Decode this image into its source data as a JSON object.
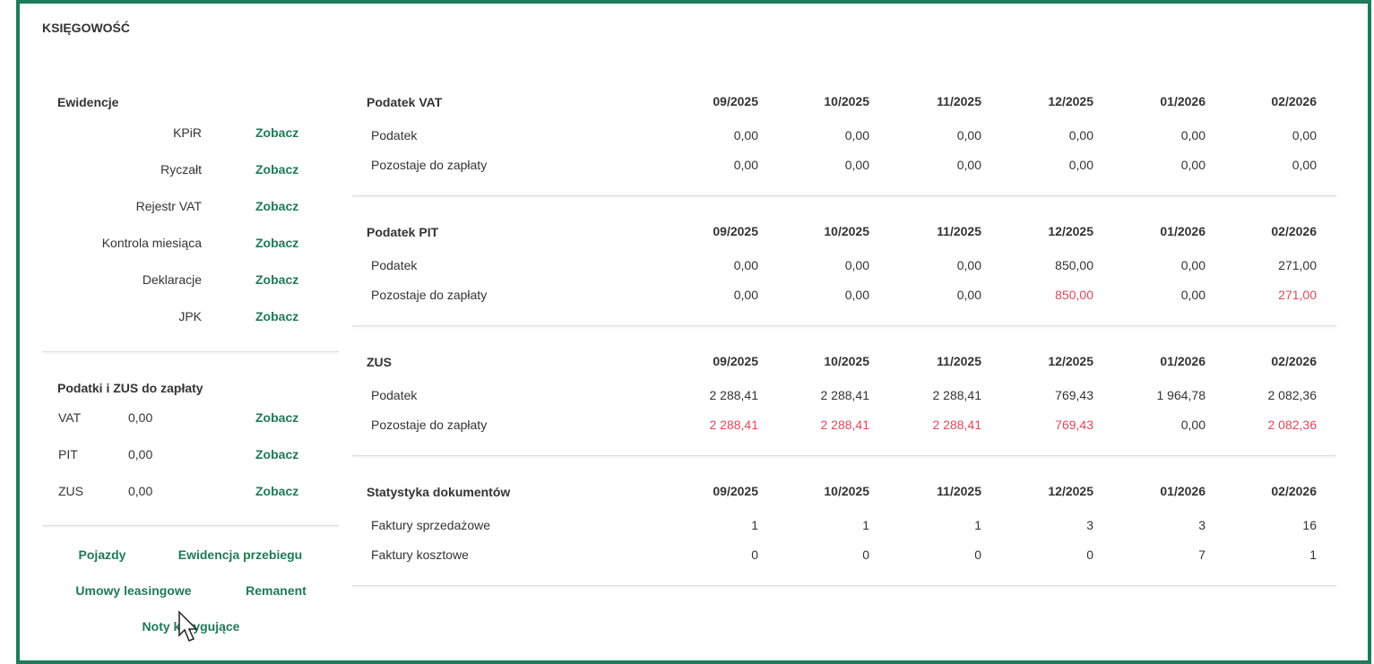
{
  "header": {
    "title": "KSIĘGOWOŚĆ"
  },
  "ewidencje": {
    "title": "Ewidencje",
    "items": [
      {
        "label": "KPiR",
        "link": "Zobacz"
      },
      {
        "label": "Ryczałt",
        "link": "Zobacz"
      },
      {
        "label": "Rejestr VAT",
        "link": "Zobacz"
      },
      {
        "label": "Kontrola miesiąca",
        "link": "Zobacz"
      },
      {
        "label": "Deklaracje",
        "link": "Zobacz"
      },
      {
        "label": "JPK",
        "link": "Zobacz"
      }
    ]
  },
  "do_zaplaty": {
    "title": "Podatki i ZUS do zapłaty",
    "items": [
      {
        "label": "VAT",
        "value": "0,00",
        "link": "Zobacz"
      },
      {
        "label": "PIT",
        "value": "0,00",
        "link": "Zobacz"
      },
      {
        "label": "ZUS",
        "value": "0,00",
        "link": "Zobacz"
      }
    ]
  },
  "links": [
    "Pojazdy",
    "Ewidencja przebiegu",
    "Umowy leasingowe",
    "Remanent",
    "Noty korygujące"
  ],
  "sections": [
    {
      "title": "Podatek VAT",
      "periods": [
        "09/2025",
        "10/2025",
        "11/2025",
        "12/2025",
        "01/2026",
        "02/2026"
      ],
      "rows": [
        {
          "label": "Podatek",
          "values": [
            "0,00",
            "0,00",
            "0,00",
            "0,00",
            "0,00",
            "0,00"
          ]
        },
        {
          "label": "Pozostaje do zapłaty",
          "values": [
            "0,00",
            "0,00",
            "0,00",
            "0,00",
            "0,00",
            "0,00"
          ]
        }
      ]
    },
    {
      "title": "Podatek PIT",
      "periods": [
        "09/2025",
        "10/2025",
        "11/2025",
        "12/2025",
        "01/2026",
        "02/2026"
      ],
      "rows": [
        {
          "label": "Podatek",
          "values": [
            "0,00",
            "0,00",
            "0,00",
            "850,00",
            "0,00",
            "271,00"
          ]
        },
        {
          "label": "Pozostaje do zapłaty",
          "values": [
            "0,00",
            "0,00",
            "0,00",
            "850,00",
            "0,00",
            "271,00"
          ]
        }
      ]
    },
    {
      "title": "ZUS",
      "periods": [
        "09/2025",
        "10/2025",
        "11/2025",
        "12/2025",
        "01/2026",
        "02/2026"
      ],
      "rows": [
        {
          "label": "Podatek",
          "values": [
            "2 288,41",
            "2 288,41",
            "2 288,41",
            "769,43",
            "1 964,78",
            "2 082,36"
          ]
        },
        {
          "label": "Pozostaje do zapłaty",
          "values": [
            "2 288,41",
            "2 288,41",
            "2 288,41",
            "769,43",
            "0,00",
            "2 082,36"
          ]
        }
      ]
    },
    {
      "title": "Statystyka dokumentów",
      "periods": [
        "09/2025",
        "10/2025",
        "11/2025",
        "12/2025",
        "01/2026",
        "02/2026"
      ],
      "rows": [
        {
          "label": "Faktury sprzedażowe",
          "values": [
            "1",
            "1",
            "1",
            "3",
            "3",
            "16"
          ]
        },
        {
          "label": "Faktury kosztowe",
          "values": [
            "0",
            "0",
            "0",
            "0",
            "7",
            "1"
          ]
        }
      ]
    }
  ]
}
